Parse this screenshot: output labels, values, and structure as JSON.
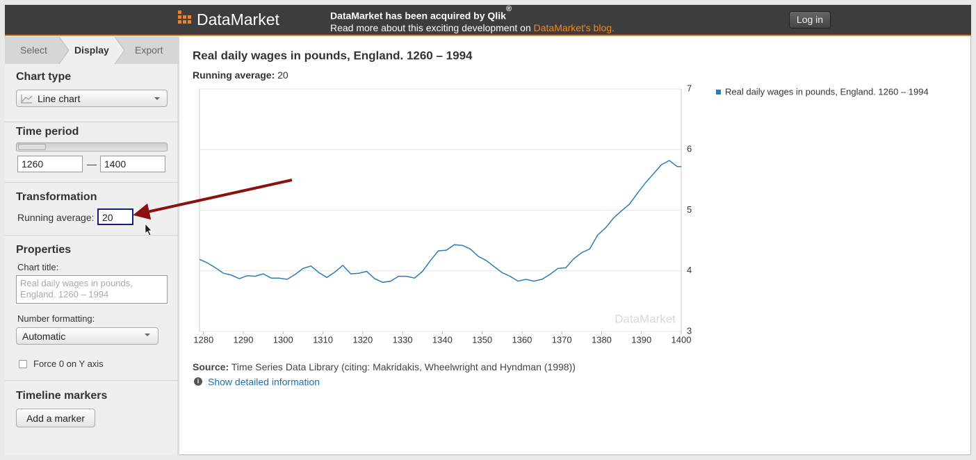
{
  "header": {
    "logo": "DataMarket",
    "announcement": "DataMarket has been acquired by Qlik",
    "registered": "®",
    "more": "Read more about this exciting development on",
    "link": "DataMarket's blog.",
    "login": "Log in"
  },
  "sidebar": {
    "tabs": [
      "Select",
      "Display",
      "Export"
    ],
    "chart_type": {
      "heading": "Chart type",
      "value": "Line chart"
    },
    "time_period": {
      "heading": "Time period",
      "from": "1260",
      "separator": "—",
      "to": "1400"
    },
    "transformation": {
      "heading": "Transformation",
      "label": "Running average:",
      "value": "20"
    },
    "properties": {
      "heading": "Properties",
      "chart_title_label": "Chart title:",
      "chart_title_placeholder": "Real daily wages in pounds, England. 1260 – 1994",
      "number_formatting_label": "Number formatting:",
      "number_formatting": "Automatic",
      "force_zero": "Force 0 on Y axis"
    },
    "timeline": {
      "heading": "Timeline markers",
      "button": "Add a marker"
    }
  },
  "chart_data": {
    "type": "line",
    "title": "Real daily wages in pounds, England. 1260 – 1994",
    "subtitle_label": "Running average:",
    "subtitle_value": "20",
    "x": [
      1279,
      1281,
      1283,
      1285,
      1287,
      1289,
      1291,
      1293,
      1295,
      1297,
      1299,
      1301,
      1303,
      1305,
      1307,
      1309,
      1311,
      1313,
      1315,
      1317,
      1319,
      1321,
      1323,
      1325,
      1327,
      1329,
      1331,
      1333,
      1335,
      1337,
      1339,
      1341,
      1343,
      1345,
      1347,
      1349,
      1351,
      1353,
      1355,
      1357,
      1359,
      1361,
      1363,
      1365,
      1367,
      1369,
      1371,
      1373,
      1375,
      1377,
      1379,
      1381,
      1383,
      1385,
      1387,
      1389,
      1391,
      1393,
      1395,
      1397,
      1399,
      1400
    ],
    "series": [
      {
        "name": "Real daily wages in pounds, England. 1260 – 1994",
        "color": "#2b7bb9",
        "values": [
          4.19,
          4.13,
          4.05,
          3.96,
          3.93,
          3.87,
          3.92,
          3.91,
          3.95,
          3.88,
          3.88,
          3.86,
          3.94,
          4.04,
          4.08,
          3.97,
          3.89,
          3.98,
          4.09,
          3.95,
          3.96,
          3.99,
          3.87,
          3.81,
          3.83,
          3.91,
          3.91,
          3.88,
          3.99,
          4.17,
          4.33,
          4.34,
          4.43,
          4.42,
          4.36,
          4.24,
          4.17,
          4.07,
          3.97,
          3.91,
          3.83,
          3.86,
          3.83,
          3.86,
          3.94,
          4.04,
          4.05,
          4.2,
          4.3,
          4.36,
          4.59,
          4.71,
          4.87,
          4.99,
          5.1,
          5.28,
          5.45,
          5.6,
          5.75,
          5.82,
          5.72,
          5.72
        ]
      }
    ],
    "xlim": [
      1279,
      1400
    ],
    "ylim": [
      3,
      7
    ],
    "xticks": [
      1280,
      1290,
      1300,
      1310,
      1320,
      1330,
      1340,
      1350,
      1360,
      1370,
      1380,
      1390,
      1400
    ],
    "yticks": [
      3,
      4,
      5,
      6,
      7
    ],
    "grid": true,
    "legend": "right",
    "watermark": "DataMarket"
  },
  "source": {
    "label": "Source:",
    "text": "Time Series Data Library (citing: Makridakis, Wheelwright and Hyndman (1998))",
    "link": "Show detailed information"
  }
}
